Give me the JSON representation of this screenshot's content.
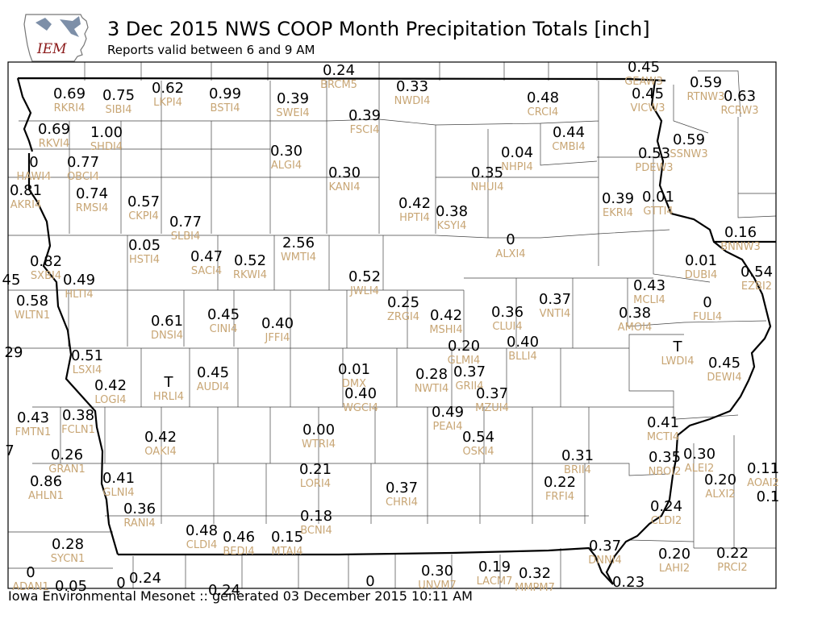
{
  "header": {
    "title": "3 Dec 2015 NWS COOP Month Precipitation Totals [inch]",
    "subtitle": "Reports valid between 6 and 9 AM"
  },
  "logo": {
    "text": "IEM",
    "icon": "iowa-state-silhouette-icon"
  },
  "footer": {
    "text": "Iowa Environmental Mesonet :: generated 03 December 2015 10:11 AM"
  },
  "colors": {
    "value": "#000000",
    "station_id": "#c8a675",
    "county_line": "#444444",
    "state_line": "#000000",
    "logo_text": "#8b1a1a"
  },
  "stations": [
    {
      "value": "0.24",
      "id": "BRCM5"
    },
    {
      "value": "0.45",
      "id": "GEAW3"
    },
    {
      "value": "0.69",
      "id": "RKRI4"
    },
    {
      "value": "0.75",
      "id": "SIBI4"
    },
    {
      "value": "0.62",
      "id": "LKPI4"
    },
    {
      "value": "0.99",
      "id": "BSTI4"
    },
    {
      "value": "0.39",
      "id": "SWEI4"
    },
    {
      "value": "0.33",
      "id": "NWDI4"
    },
    {
      "value": "0.48",
      "id": "CRCI4"
    },
    {
      "value": "0.45",
      "id": "VICW3"
    },
    {
      "value": "0.59",
      "id": "RTNW3"
    },
    {
      "value": "0.63",
      "id": "RCRW3"
    },
    {
      "value": "0.39",
      "id": "FSCI4"
    },
    {
      "value": "0.69",
      "id": "RKVI4"
    },
    {
      "value": "1.00",
      "id": "SHDI4"
    },
    {
      "value": "0.44",
      "id": "CMBI4"
    },
    {
      "value": "0.59",
      "id": "SSNW3"
    },
    {
      "value": "0.30",
      "id": "ALGI4"
    },
    {
      "value": "0.04",
      "id": "NHPI4"
    },
    {
      "value": "0.53",
      "id": "PDEW3"
    },
    {
      "value": "0",
      "id": "HAWI4"
    },
    {
      "value": "0.77",
      "id": "OBCI4"
    },
    {
      "value": "0.30",
      "id": "KANI4"
    },
    {
      "value": "0.35",
      "id": "NHUI4"
    },
    {
      "value": "0.81",
      "id": "AKRI4"
    },
    {
      "value": "0.74",
      "id": "RMSI4"
    },
    {
      "value": "0.57",
      "id": "CKPI4"
    },
    {
      "value": "0.42",
      "id": "HPTI4"
    },
    {
      "value": "0.38",
      "id": "KSYI4"
    },
    {
      "value": "0.39",
      "id": "EKRI4"
    },
    {
      "value": "0.01",
      "id": "GTTI4"
    },
    {
      "value": "0.77",
      "id": "SLBI4"
    },
    {
      "value": "0.16",
      "id": "BNNW3"
    },
    {
      "value": "0.05",
      "id": "HSTI4"
    },
    {
      "value": "2.56",
      "id": "WMTI4"
    },
    {
      "value": "0",
      "id": "ALXI4"
    },
    {
      "value": "0.82",
      "id": "SXBI4"
    },
    {
      "value": "0.47",
      "id": "SACI4"
    },
    {
      "value": "0.52",
      "id": "RKWI4"
    },
    {
      "value": "0.01",
      "id": "DUBI4"
    },
    {
      "value": "0.54",
      "id": "EZBI2"
    },
    {
      "value": "45",
      "id": ""
    },
    {
      "value": "0.49",
      "id": "HLTI4"
    },
    {
      "value": "0.52",
      "id": "JWLI4"
    },
    {
      "value": "0.43",
      "id": "MCLI4"
    },
    {
      "value": "0.58",
      "id": "WLTN1"
    },
    {
      "value": "0.37",
      "id": "VNTI4"
    },
    {
      "value": "0",
      "id": "FULI4"
    },
    {
      "value": "0.25",
      "id": "ZRGI4"
    },
    {
      "value": "0.36",
      "id": "CLUI4"
    },
    {
      "value": "0.42",
      "id": "MSHI4"
    },
    {
      "value": "0.38",
      "id": "AMOI4"
    },
    {
      "value": "0.61",
      "id": "DNSI4"
    },
    {
      "value": "0.45",
      "id": "CINI4"
    },
    {
      "value": "0.40",
      "id": "JFFI4"
    },
    {
      "value": "0.40",
      "id": "BLLI4"
    },
    {
      "value": "0.20",
      "id": "GLMI4"
    },
    {
      "value": "T",
      "id": "LWDI4"
    },
    {
      "value": "29",
      "id": ""
    },
    {
      "value": "0.51",
      "id": "LSXI4"
    },
    {
      "value": "0.45",
      "id": "DEWI4"
    },
    {
      "value": "T",
      "id": "HRLI4"
    },
    {
      "value": "0.42",
      "id": "LOGI4"
    },
    {
      "value": "0.45",
      "id": "AUDI4"
    },
    {
      "value": "0.01",
      "id": "DMX"
    },
    {
      "value": "0.28",
      "id": "NWTI4"
    },
    {
      "value": "0.37",
      "id": "GRII4"
    },
    {
      "value": "0.40",
      "id": "WGCI4"
    },
    {
      "value": "0.37",
      "id": "MZUI4"
    },
    {
      "value": "0.43",
      "id": "FMTN1"
    },
    {
      "value": "0.38",
      "id": "FCLN1"
    },
    {
      "value": "0.49",
      "id": "PEAI4"
    },
    {
      "value": "0.41",
      "id": "MCTI4"
    },
    {
      "value": "0.42",
      "id": "OAKI4"
    },
    {
      "value": "0.00",
      "id": "WTRI4"
    },
    {
      "value": "0.54",
      "id": "OSKI4"
    },
    {
      "value": "7",
      "id": ""
    },
    {
      "value": "0.26",
      "id": "GRAN1"
    },
    {
      "value": "0.35",
      "id": "NBOI2"
    },
    {
      "value": "0.30",
      "id": "ALEI2"
    },
    {
      "value": "0.31",
      "id": "BRII4"
    },
    {
      "value": "0.11",
      "id": "AOAI2"
    },
    {
      "value": "0.86",
      "id": "AHLN1"
    },
    {
      "value": "0.41",
      "id": "GLNI4"
    },
    {
      "value": "0.21",
      "id": "LORI4"
    },
    {
      "value": "0.37",
      "id": "CHRI4"
    },
    {
      "value": "0.22",
      "id": "FRFI4"
    },
    {
      "value": "0.20",
      "id": "ALXI2"
    },
    {
      "value": "0.1",
      "id": ""
    },
    {
      "value": "0.36",
      "id": "RANI4"
    },
    {
      "value": "0.18",
      "id": "BCNI4"
    },
    {
      "value": "0.24",
      "id": "CLDI2"
    },
    {
      "value": "0.48",
      "id": "CLDI4"
    },
    {
      "value": "0.46",
      "id": "BEDI4"
    },
    {
      "value": "0.15",
      "id": "MTAI4"
    },
    {
      "value": "0.28",
      "id": "SYCN1"
    },
    {
      "value": "0.37",
      "id": "DNNI4"
    },
    {
      "value": "0.20",
      "id": "LAHI2"
    },
    {
      "value": "0.22",
      "id": "PRCI2"
    },
    {
      "value": "0.30",
      "id": "UNVM7"
    },
    {
      "value": "0.19",
      "id": "LACM7"
    },
    {
      "value": "0.32",
      "id": "MMPM7"
    },
    {
      "value": "0",
      "id": "ADAN1"
    },
    {
      "value": "0.05",
      "id": ""
    },
    {
      "value": "0",
      "id": ""
    },
    {
      "value": "0.24",
      "id": ""
    },
    {
      "value": "0.24",
      "id": ""
    },
    {
      "value": "0",
      "id": ""
    },
    {
      "value": "0.23",
      "id": ""
    }
  ]
}
